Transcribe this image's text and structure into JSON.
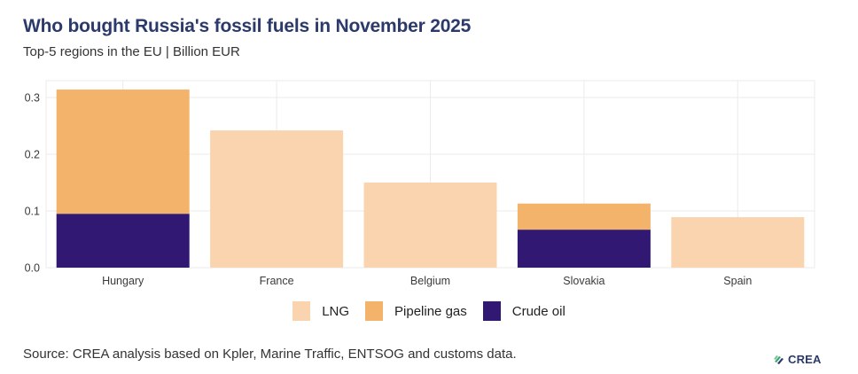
{
  "header": {
    "title": "Who bought Russia's fossil fuels in November 2025",
    "subtitle": "Top-5 regions in the EU | Billion EUR"
  },
  "footer": {
    "source": "Source: CREA analysis based on Kpler, Marine Traffic, ENTSOG and customs data.",
    "logo_text": "CREA"
  },
  "colors": {
    "lng": "#f9d4af",
    "pipeline_gas": "#f4b36b",
    "crude_oil": "#311873",
    "title": "#2b3a6b",
    "grid": "#ebebeb"
  },
  "chart_data": {
    "type": "bar",
    "stacked": true,
    "title": "Who bought Russia's fossil fuels in November 2025",
    "subtitle": "Top-5 regions in the EU | Billion EUR",
    "xlabel": "",
    "ylabel": "",
    "categories": [
      "Hungary",
      "France",
      "Belgium",
      "Slovakia",
      "Spain"
    ],
    "series": [
      {
        "name": "Crude oil",
        "key": "crude_oil",
        "values": [
          0.095,
          0,
          0,
          0.067,
          0
        ]
      },
      {
        "name": "Pipeline gas",
        "key": "pipeline_gas",
        "values": [
          0.219,
          0,
          0,
          0.046,
          0
        ]
      },
      {
        "name": "LNG",
        "key": "lng",
        "values": [
          0,
          0.242,
          0.15,
          0,
          0.089
        ]
      }
    ],
    "legend_order": [
      "LNG",
      "Pipeline gas",
      "Crude oil"
    ],
    "ylim": [
      0,
      0.33
    ],
    "yticks": [
      0.0,
      0.1,
      0.2,
      0.3
    ],
    "ytick_labels": [
      "0.0",
      "0.1",
      "0.2",
      "0.3"
    ],
    "grid": true,
    "legend_position": "bottom"
  }
}
